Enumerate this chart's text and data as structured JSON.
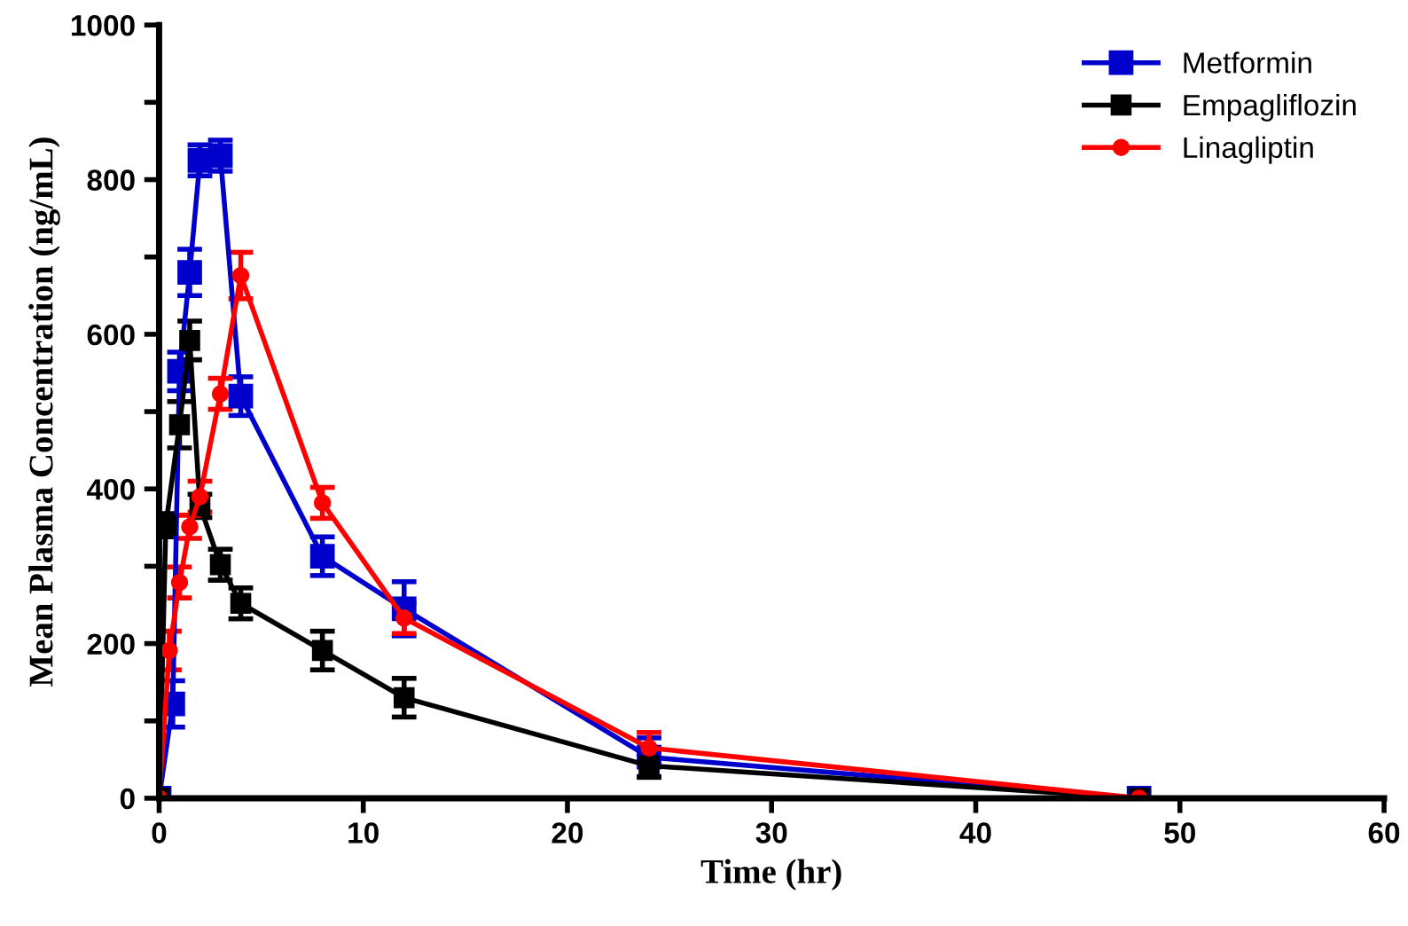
{
  "chart_data": {
    "type": "line",
    "xlabel": "Time (hr)",
    "ylabel": "Mean Plasma Concentration (ng/mL)",
    "xlim": [
      0,
      60
    ],
    "xticks": [
      0,
      10,
      20,
      30,
      40,
      50,
      60
    ],
    "ylim": [
      0,
      1000
    ],
    "yticks": [
      0,
      {
        "value": 100,
        "label": null
      },
      200,
      {
        "value": 300,
        "label": null
      },
      400,
      {
        "value": 500,
        "label": null
      },
      600,
      {
        "value": 700,
        "label": null
      },
      800,
      {
        "value": 900,
        "label": null
      },
      1000
    ],
    "grid": false,
    "legend": "top right",
    "line_style": "solid",
    "series": [
      {
        "name": "Metformin",
        "color": "#0000cc",
        "marker": "square",
        "x": [
          0,
          0.67,
          1,
          1.5,
          2,
          3,
          4,
          8,
          12,
          24,
          48
        ],
        "values": [
          0,
          122,
          552,
          680,
          825,
          831,
          520,
          313,
          245,
          53,
          0
        ],
        "errors": [
          null,
          30,
          25,
          30,
          20,
          20,
          25,
          25,
          35,
          25,
          null
        ]
      },
      {
        "name": "Empagliflozin",
        "color": "#000000",
        "marker": "square",
        "x": [
          0,
          0.33,
          1,
          1.5,
          2,
          3,
          4,
          8,
          12,
          24,
          48
        ],
        "values": [
          0,
          353,
          483,
          592,
          378,
          302,
          252,
          191,
          130,
          42,
          0
        ],
        "errors": [
          null,
          15,
          30,
          25,
          15,
          20,
          20,
          25,
          25,
          15,
          null
        ]
      },
      {
        "name": "Linagliptin",
        "color": "#ff0000",
        "marker": "circle",
        "x": [
          0,
          0.5,
          1,
          1.5,
          2,
          3,
          4,
          8,
          12,
          24,
          48
        ],
        "values": [
          0,
          191,
          279,
          351,
          390,
          523,
          676,
          382,
          233,
          65,
          0
        ],
        "errors": [
          null,
          25,
          20,
          15,
          20,
          20,
          30,
          20,
          20,
          20,
          null
        ]
      }
    ]
  }
}
